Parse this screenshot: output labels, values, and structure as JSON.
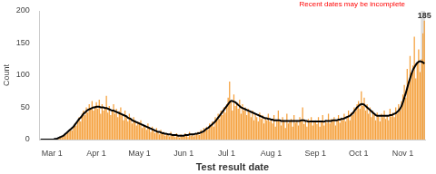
{
  "chart_data": {
    "type": "bar",
    "x_label": "Test result date",
    "y_label": "Count",
    "annotations": [
      {
        "text": "Recent dates may be incomplete",
        "color": "#ff0000"
      }
    ],
    "categories": [
      null,
      null,
      null,
      null,
      null,
      null,
      null,
      null,
      "Mar 1",
      null,
      null,
      null,
      null,
      null,
      null,
      null,
      null,
      null,
      null,
      null,
      null,
      null,
      null,
      null,
      null,
      null,
      null,
      null,
      null,
      null,
      null,
      null,
      null,
      null,
      null,
      null,
      null,
      null,
      null,
      "Apr 1",
      null,
      null,
      null,
      null,
      null,
      null,
      null,
      null,
      null,
      null,
      null,
      null,
      null,
      null,
      null,
      null,
      null,
      null,
      null,
      null,
      null,
      null,
      null,
      null,
      null,
      null,
      null,
      null,
      null,
      "May 1",
      null,
      null,
      null,
      null,
      null,
      null,
      null,
      null,
      null,
      null,
      null,
      null,
      null,
      null,
      null,
      null,
      null,
      null,
      null,
      null,
      null,
      null,
      null,
      null,
      null,
      null,
      null,
      null,
      null,
      null,
      "Jun 1",
      null,
      null,
      null,
      null,
      null,
      null,
      null,
      null,
      null,
      null,
      null,
      null,
      null,
      null,
      null,
      null,
      null,
      null,
      null,
      null,
      null,
      null,
      null,
      null,
      null,
      null,
      null,
      null,
      null,
      "Jul 1",
      null,
      null,
      null,
      null,
      null,
      null,
      null,
      null,
      null,
      null,
      null,
      null,
      null,
      null,
      null,
      null,
      null,
      null,
      null,
      null,
      null,
      null,
      null,
      null,
      null,
      null,
      null,
      null,
      null,
      null,
      "Aug 1",
      null,
      null,
      null,
      null,
      null,
      null,
      null,
      null,
      null,
      null,
      null,
      null,
      null,
      null,
      null,
      null,
      null,
      null,
      null,
      null,
      null,
      null,
      null,
      null,
      null,
      null,
      null,
      null,
      null,
      null,
      "Sep 1",
      null,
      null,
      null,
      null,
      null,
      null,
      null,
      null,
      null,
      null,
      null,
      null,
      null,
      null,
      null,
      null,
      null,
      null,
      null,
      null,
      null,
      null,
      null,
      null,
      null,
      null,
      null,
      null,
      null,
      "Oct 1",
      null,
      null,
      null,
      null,
      null,
      null,
      null,
      null,
      null,
      null,
      null,
      null,
      null,
      null,
      null,
      null,
      null,
      null,
      null,
      null,
      null,
      null,
      null,
      null,
      null,
      null,
      null,
      null,
      null,
      null,
      "Nov 1",
      null,
      null,
      null,
      null,
      null,
      null,
      null,
      null,
      null,
      null,
      null,
      null,
      null,
      null,
      null
    ],
    "series": [
      {
        "type": "bar",
        "color": "#f5a03c",
        "values": [
          0,
          0,
          0,
          0,
          0,
          0,
          0,
          0,
          0,
          0,
          1,
          1,
          2,
          2,
          3,
          4,
          5,
          6,
          8,
          10,
          12,
          15,
          14,
          20,
          25,
          22,
          30,
          35,
          28,
          40,
          45,
          38,
          50,
          42,
          55,
          48,
          60,
          45,
          52,
          58,
          48,
          62,
          40,
          55,
          45,
          50,
          68,
          42,
          52,
          38,
          45,
          55,
          40,
          48,
          35,
          44,
          50,
          38,
          30,
          45,
          36,
          28,
          40,
          32,
          25,
          35,
          30,
          22,
          28,
          25,
          30,
          18,
          22,
          20,
          15,
          25,
          18,
          12,
          20,
          15,
          10,
          18,
          12,
          8,
          15,
          10,
          12,
          6,
          10,
          8,
          5,
          12,
          6,
          8,
          4,
          10,
          6,
          3,
          8,
          5,
          6,
          10,
          8,
          4,
          12,
          6,
          9,
          5,
          10,
          8,
          12,
          7,
          15,
          10,
          18,
          14,
          20,
          16,
          25,
          22,
          28,
          20,
          35,
          30,
          40,
          32,
          45,
          38,
          50,
          42,
          55,
          65,
          90,
          60,
          45,
          70,
          52,
          58,
          48,
          62,
          40,
          55,
          45,
          50,
          38,
          48,
          42,
          35,
          45,
          30,
          40,
          35,
          28,
          42,
          32,
          38,
          25,
          35,
          30,
          40,
          28,
          32,
          25,
          38,
          20,
          30,
          45,
          28,
          22,
          35,
          30,
          18,
          40,
          25,
          28,
          32,
          20,
          38,
          26,
          30,
          22,
          35,
          28,
          50,
          24,
          30,
          20,
          32,
          26,
          35,
          22,
          28,
          30,
          24,
          35,
          20,
          28,
          38,
          22,
          30,
          26,
          40,
          25,
          32,
          28,
          35,
          22,
          30,
          38,
          26,
          34,
          30,
          40,
          28,
          36,
          45,
          30,
          42,
          38,
          50,
          44,
          55,
          60,
          48,
          75,
          52,
          65,
          45,
          55,
          40,
          50,
          35,
          45,
          38,
          30,
          42,
          36,
          28,
          40,
          35,
          45,
          32,
          38,
          30,
          48,
          36,
          42,
          35,
          50,
          40,
          55,
          45,
          60,
          70,
          85,
          65,
          110,
          90,
          130,
          100,
          115,
          160,
          95,
          120,
          140,
          105,
          125,
          165,
          185
        ],
        "value_labels": [
          null,
          null,
          null,
          null,
          null,
          null,
          null,
          null,
          null,
          null,
          null,
          null,
          null,
          null,
          null,
          null,
          null,
          null,
          null,
          null,
          null,
          null,
          null,
          null,
          null,
          null,
          null,
          null,
          null,
          null,
          null,
          null,
          null,
          null,
          null,
          null,
          null,
          null,
          null,
          null,
          null,
          null,
          null,
          null,
          null,
          null,
          null,
          null,
          null,
          null,
          null,
          null,
          null,
          null,
          null,
          null,
          null,
          null,
          null,
          null,
          null,
          null,
          null,
          null,
          null,
          null,
          null,
          null,
          null,
          null,
          null,
          null,
          null,
          null,
          null,
          null,
          null,
          null,
          null,
          null,
          null,
          null,
          null,
          null,
          null,
          null,
          null,
          null,
          null,
          null,
          null,
          null,
          null,
          null,
          null,
          null,
          null,
          null,
          null,
          null,
          null,
          null,
          null,
          null,
          null,
          null,
          null,
          null,
          null,
          null,
          null,
          null,
          null,
          null,
          null,
          null,
          null,
          null,
          null,
          null,
          null,
          null,
          null,
          null,
          null,
          null,
          null,
          null,
          null,
          null,
          null,
          null,
          null,
          null,
          null,
          null,
          null,
          null,
          null,
          null,
          null,
          null,
          null,
          null,
          null,
          null,
          null,
          null,
          null,
          null,
          null,
          null,
          null,
          null,
          null,
          null,
          null,
          null,
          null,
          null,
          null,
          null,
          null,
          null,
          null,
          null,
          null,
          null,
          null,
          null,
          null,
          null,
          null,
          null,
          null,
          null,
          null,
          null,
          null,
          null,
          null,
          null,
          null,
          null,
          null,
          null,
          null,
          null,
          null,
          null,
          null,
          null,
          null,
          null,
          null,
          null,
          null,
          null,
          null,
          null,
          null,
          null,
          null,
          null,
          null,
          null,
          null,
          null,
          null,
          null,
          null,
          null,
          null,
          null,
          null,
          null,
          null,
          null,
          null,
          null,
          null,
          null,
          null,
          null,
          null,
          null,
          null,
          null,
          null,
          null,
          null,
          null,
          null,
          null,
          null,
          null,
          null,
          null,
          null,
          null,
          null,
          null,
          null,
          null,
          null,
          null,
          null,
          null,
          null,
          null,
          null,
          null,
          null,
          null,
          null,
          null,
          null,
          null,
          null,
          null,
          null,
          null,
          null,
          null,
          null,
          null,
          null,
          null,
          "185"
        ]
      },
      {
        "type": "line",
        "color": "#000000",
        "values": [
          0,
          0,
          0,
          0,
          0,
          0,
          0,
          0,
          0,
          0,
          1,
          1,
          2,
          3,
          4,
          5,
          6,
          8,
          10,
          12,
          14,
          16,
          18,
          20,
          23,
          26,
          29,
          32,
          34,
          37,
          40,
          42,
          44,
          46,
          47,
          48,
          49,
          50,
          50,
          51,
          51,
          51,
          50,
          50,
          50,
          49,
          49,
          48,
          47,
          46,
          45,
          45,
          44,
          43,
          42,
          41,
          40,
          39,
          38,
          37,
          36,
          34,
          33,
          32,
          30,
          29,
          28,
          27,
          26,
          25,
          24,
          23,
          22,
          21,
          20,
          19,
          18,
          17,
          16,
          15,
          14,
          13,
          12,
          12,
          11,
          10,
          10,
          9,
          9,
          8,
          8,
          8,
          7,
          7,
          7,
          7,
          6,
          6,
          6,
          6,
          6,
          7,
          7,
          7,
          8,
          8,
          8,
          8,
          9,
          9,
          10,
          10,
          11,
          12,
          13,
          15,
          17,
          18,
          20,
          22,
          24,
          26,
          28,
          31,
          34,
          37,
          40,
          43,
          46,
          49,
          52,
          55,
          58,
          60,
          60,
          59,
          58,
          56,
          54,
          52,
          50,
          49,
          48,
          47,
          46,
          45,
          44,
          43,
          42,
          41,
          40,
          39,
          38,
          37,
          36,
          35,
          34,
          33,
          33,
          32,
          32,
          31,
          31,
          30,
          30,
          30,
          30,
          30,
          29,
          29,
          29,
          29,
          29,
          29,
          29,
          29,
          29,
          29,
          29,
          29,
          29,
          29,
          30,
          30,
          30,
          29,
          29,
          28,
          28,
          28,
          28,
          28,
          28,
          28,
          28,
          28,
          28,
          28,
          28,
          29,
          29,
          29,
          29,
          29,
          30,
          30,
          30,
          30,
          31,
          31,
          32,
          32,
          33,
          34,
          35,
          36,
          37,
          39,
          41,
          44,
          47,
          50,
          52,
          54,
          55,
          55,
          54,
          52,
          50,
          48,
          46,
          44,
          42,
          40,
          38,
          37,
          37,
          37,
          37,
          37,
          37,
          37,
          37,
          37,
          38,
          38,
          39,
          40,
          41,
          43,
          45,
          48,
          52,
          58,
          65,
          72,
          80,
          88,
          95,
          102,
          108,
          112,
          116,
          119,
          121,
          122,
          121,
          120,
          118
        ]
      }
    ],
    "ylim": [
      0,
      200
    ],
    "yticks": [
      0,
      50,
      100,
      150,
      200
    ],
    "grid": false
  }
}
